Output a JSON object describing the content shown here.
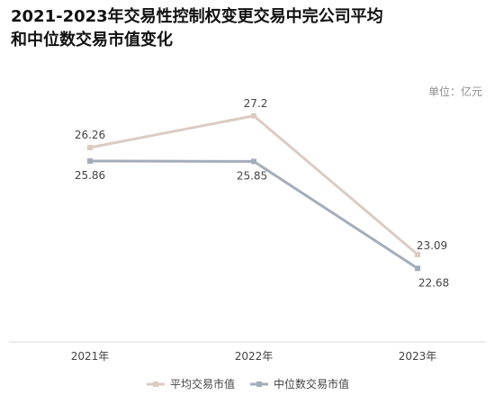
{
  "chart_data": {
    "type": "line",
    "title_line1": "2021-2023年交易性控制权变更交易中完公司平均",
    "title_line2": "和中位数交易市值变化",
    "unit_label": "单位：亿元",
    "categories": [
      "2021年",
      "2022年",
      "2023年"
    ],
    "series": [
      {
        "name": "平均交易市值",
        "values": [
          26.26,
          27.2,
          23.09
        ],
        "labels": [
          "26.26",
          "27.2",
          "23.09"
        ],
        "color": "#dccbc3"
      },
      {
        "name": "中位数交易市值",
        "values": [
          25.86,
          25.85,
          22.68
        ],
        "labels": [
          "25.86",
          "25.85",
          "22.68"
        ],
        "color": "#a4adbb"
      }
    ],
    "xlabel": "",
    "ylabel": "",
    "ylim": [
      20.5,
      28.5
    ],
    "grid": false,
    "legend": "bottom"
  }
}
